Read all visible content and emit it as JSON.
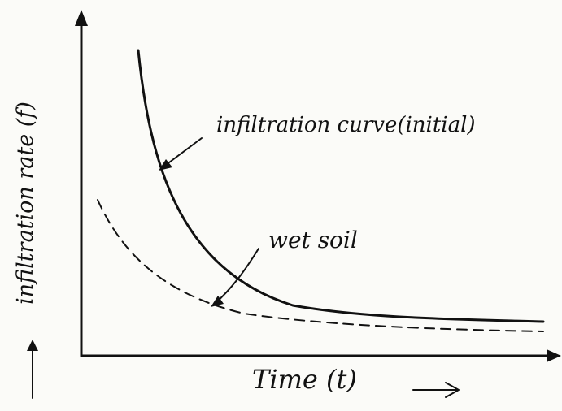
{
  "axes": {
    "y_label": "infiltration rate (f)",
    "x_label": "Time (t)"
  },
  "annotations": {
    "initial_curve": "infiltration curve(initial)",
    "wet_soil": "wet soil"
  }
}
